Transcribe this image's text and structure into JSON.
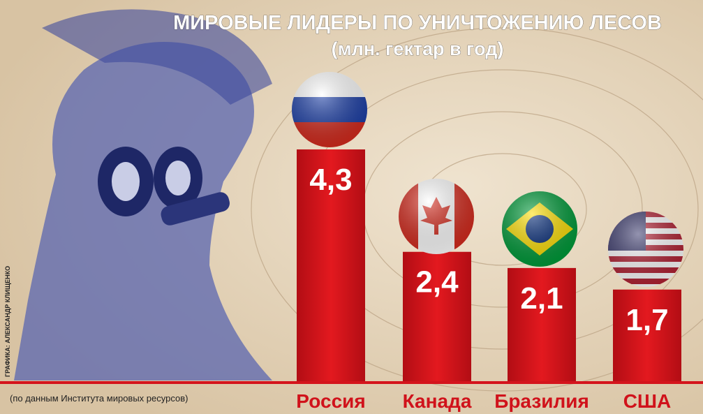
{
  "chart_data": {
    "type": "bar",
    "title": "МИРОВЫЕ ЛИДЕРЫ ПО УНИЧТОЖЕНИЮ ЛЕСОВ",
    "subtitle": "(млн. гектар в год)",
    "categories": [
      "Россия",
      "Канада",
      "Бразилия",
      "США"
    ],
    "values": [
      4.3,
      2.4,
      2.1,
      1.7
    ],
    "value_labels": [
      "4,3",
      "2,4",
      "2,1",
      "1,7"
    ],
    "color": "#d4141c",
    "source": "(по данным Института мировых ресурсов)",
    "credit": "ГРАФИКА: АЛЕКСАНДР КЛИЩЕНКО"
  }
}
